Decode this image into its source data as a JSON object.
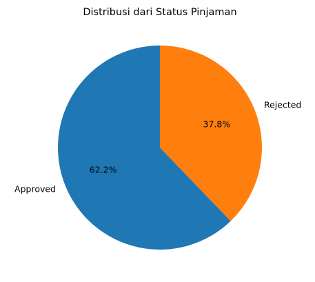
{
  "chart_data": {
    "type": "pie",
    "title": "Distribusi dari Status Pinjaman",
    "labels": [
      "Approved",
      "Rejected"
    ],
    "values": [
      62.2,
      37.8
    ],
    "percent_labels": [
      "62.2%",
      "37.8%"
    ],
    "colors": [
      "#1f77b4",
      "#ff7f0e"
    ],
    "start_angle_deg": 90,
    "direction": "counterclockwise",
    "legend": "none"
  }
}
